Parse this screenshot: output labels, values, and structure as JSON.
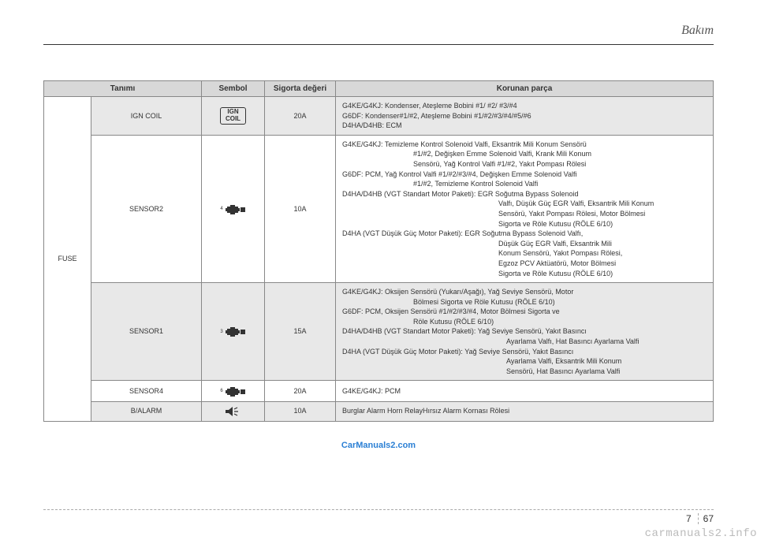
{
  "header": {
    "title": "Bakım"
  },
  "table": {
    "headers": {
      "name": "Tanımı",
      "symbol": "Sembol",
      "rating": "Sigorta değeri",
      "desc": "Korunan parça"
    },
    "group": "FUSE",
    "rows": [
      {
        "name": "IGN COIL",
        "symbol_text": "IGN\nCOIL",
        "rating": "20A",
        "desc": "G4KE/G4KJ: Kondenser, Ateşleme Bobini #1/ #2/ #3/#4\nG6DF: Kondenser#1/#2, Ateşleme Bobini #1/#2/#3/#4/#5/#6\nD4HA/D4HB: ECM"
      },
      {
        "name": "SENSOR2",
        "symbol_num": "4",
        "rating": "10A",
        "desc_html": "G4KE/G4KJ: Temizleme Kontrol Solenoid Valfi, Eksantrik Mili Konum Sensörü<span class='indent'>#1/#2, Değişken Emme Solenoid Valfi, Krank Mili Konum</span><span class='indent'>Sensörü, Yağ Kontrol Valfi #1/#2, Yakıt Pompası Rölesi</span>G6DF: PCM, Yağ Kontrol Valfi #1/#2/#3/#4, Değişken Emme Solenoid Valfi<span class='indent'>#1/#2, Temizleme Kontrol Solenoid Valfi</span>D4HA/D4HB (VGT Standart Motor Paketi): EGR Soğutma Bypass Solenoid<span class='indent2'>Valfı, Düşük Güç EGR Valfi, Eksantrik Mili Konum</span><span class='indent2'>Sensörü, Yakıt Pompası Rölesi, Motor Bölmesi</span><span class='indent2'>Sigorta ve Röle Kutusu (RÖLE  6/10)</span>D4HA (VGT Düşük Güç Motor Paketi): EGR Soğutma Bypass Solenoid Valfı,<span class='indent2'>Düşük Güç EGR Valfi, Eksantrik Mili</span><span class='indent2'>Konum Sensörü, Yakıt Pompası Rölesi,</span><span class='indent2'>Egzoz PCV Aktüatörü, Motor Bölmesi</span><span class='indent2'>Sigorta ve Röle Kutusu (RÖLE  6/10)</span>"
      },
      {
        "name": "SENSOR1",
        "symbol_num": "3",
        "rating": "15A",
        "desc_html": "G4KE/G4KJ: Oksijen Sensörü (Yukarı/Aşağı), Yağ Seviye Sensörü, Motor<span class='indent'>Bölmesi Sigorta ve Röle Kutusu (RÖLE  6/10)</span>G6DF: PCM, Oksijen Sensörü #1/#2/#3/#4, Motor Bölmesi Sigorta ve<span class='indent'>Röle Kutusu (RÖLE  6/10)</span>D4HA/D4HB (VGT Standart Motor Paketi): Yağ Seviye Sensörü, Yakıt Basıncı<span class='indent3'>Ayarlama Valfı, Hat Basıncı Ayarlama Valfi</span>D4HA (VGT Düşük Güç Motor Paketi): Yağ Seviye Sensörü, Yakıt Basıncı<span class='indent3'>Ayarlama Valfi, Eksantrik Mili Konum</span><span class='indent3'>Sensörü, Hat Basıncı Ayarlama Valfi</span>"
      },
      {
        "name": "SENSOR4",
        "symbol_num": "6",
        "rating": "20A",
        "desc": "G4KE/G4KJ: PCM"
      },
      {
        "name": "B/ALARM",
        "symbol_type": "speaker",
        "rating": "10A",
        "desc": "Burglar Alarm Horn RelayHırsız Alarm Kornası Rölesi"
      }
    ]
  },
  "watermark": "CarManuals2.com",
  "footer": {
    "chapter": "7",
    "page": "67",
    "site": "carmanuals2.info"
  }
}
